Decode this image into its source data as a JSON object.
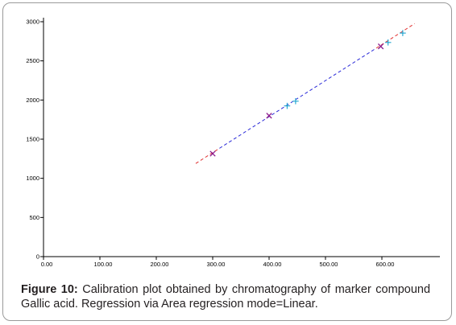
{
  "figure": {
    "label": "Figure 10:",
    "caption": "Calibration plot obtained by chromatography of marker compound Gallic acid. Regression via Area regression mode=Linear."
  },
  "chart_data": {
    "type": "scatter",
    "title": "",
    "xlabel": "",
    "ylabel": "",
    "xlim": [
      0,
      700
    ],
    "ylim": [
      0,
      3000
    ],
    "x_ticks": [
      0,
      100,
      200,
      300,
      400,
      500,
      600
    ],
    "x_tick_labels": [
      "0.00",
      "100.00",
      "200.00",
      "300.00",
      "400.00",
      "500.00",
      "600.00"
    ],
    "y_ticks": [
      0,
      500,
      1000,
      1500,
      2000,
      2500,
      3000
    ],
    "y_tick_labels": [
      "0",
      "500",
      "1000",
      "1500",
      "2000",
      "2500",
      "3000"
    ],
    "grid": false,
    "series": [
      {
        "marker": "x",
        "color": "#8b1a8b",
        "points": [
          {
            "x": 300,
            "y": 1315
          },
          {
            "x": 400,
            "y": 1800
          },
          {
            "x": 598,
            "y": 2685
          }
        ]
      },
      {
        "marker": "+",
        "color": "#1aa3cf",
        "points": [
          {
            "x": 432,
            "y": 1925
          },
          {
            "x": 447,
            "y": 1985
          },
          {
            "x": 611,
            "y": 2735
          },
          {
            "x": 637,
            "y": 2855
          }
        ]
      }
    ],
    "regression": {
      "mode": "linear",
      "x_start": 270,
      "x_end": 658,
      "y_start": 1190,
      "y_end": 2975,
      "split_x": [
        312,
        590
      ],
      "end_color": "#e03030",
      "mid_color": "#2a2ad8"
    }
  }
}
